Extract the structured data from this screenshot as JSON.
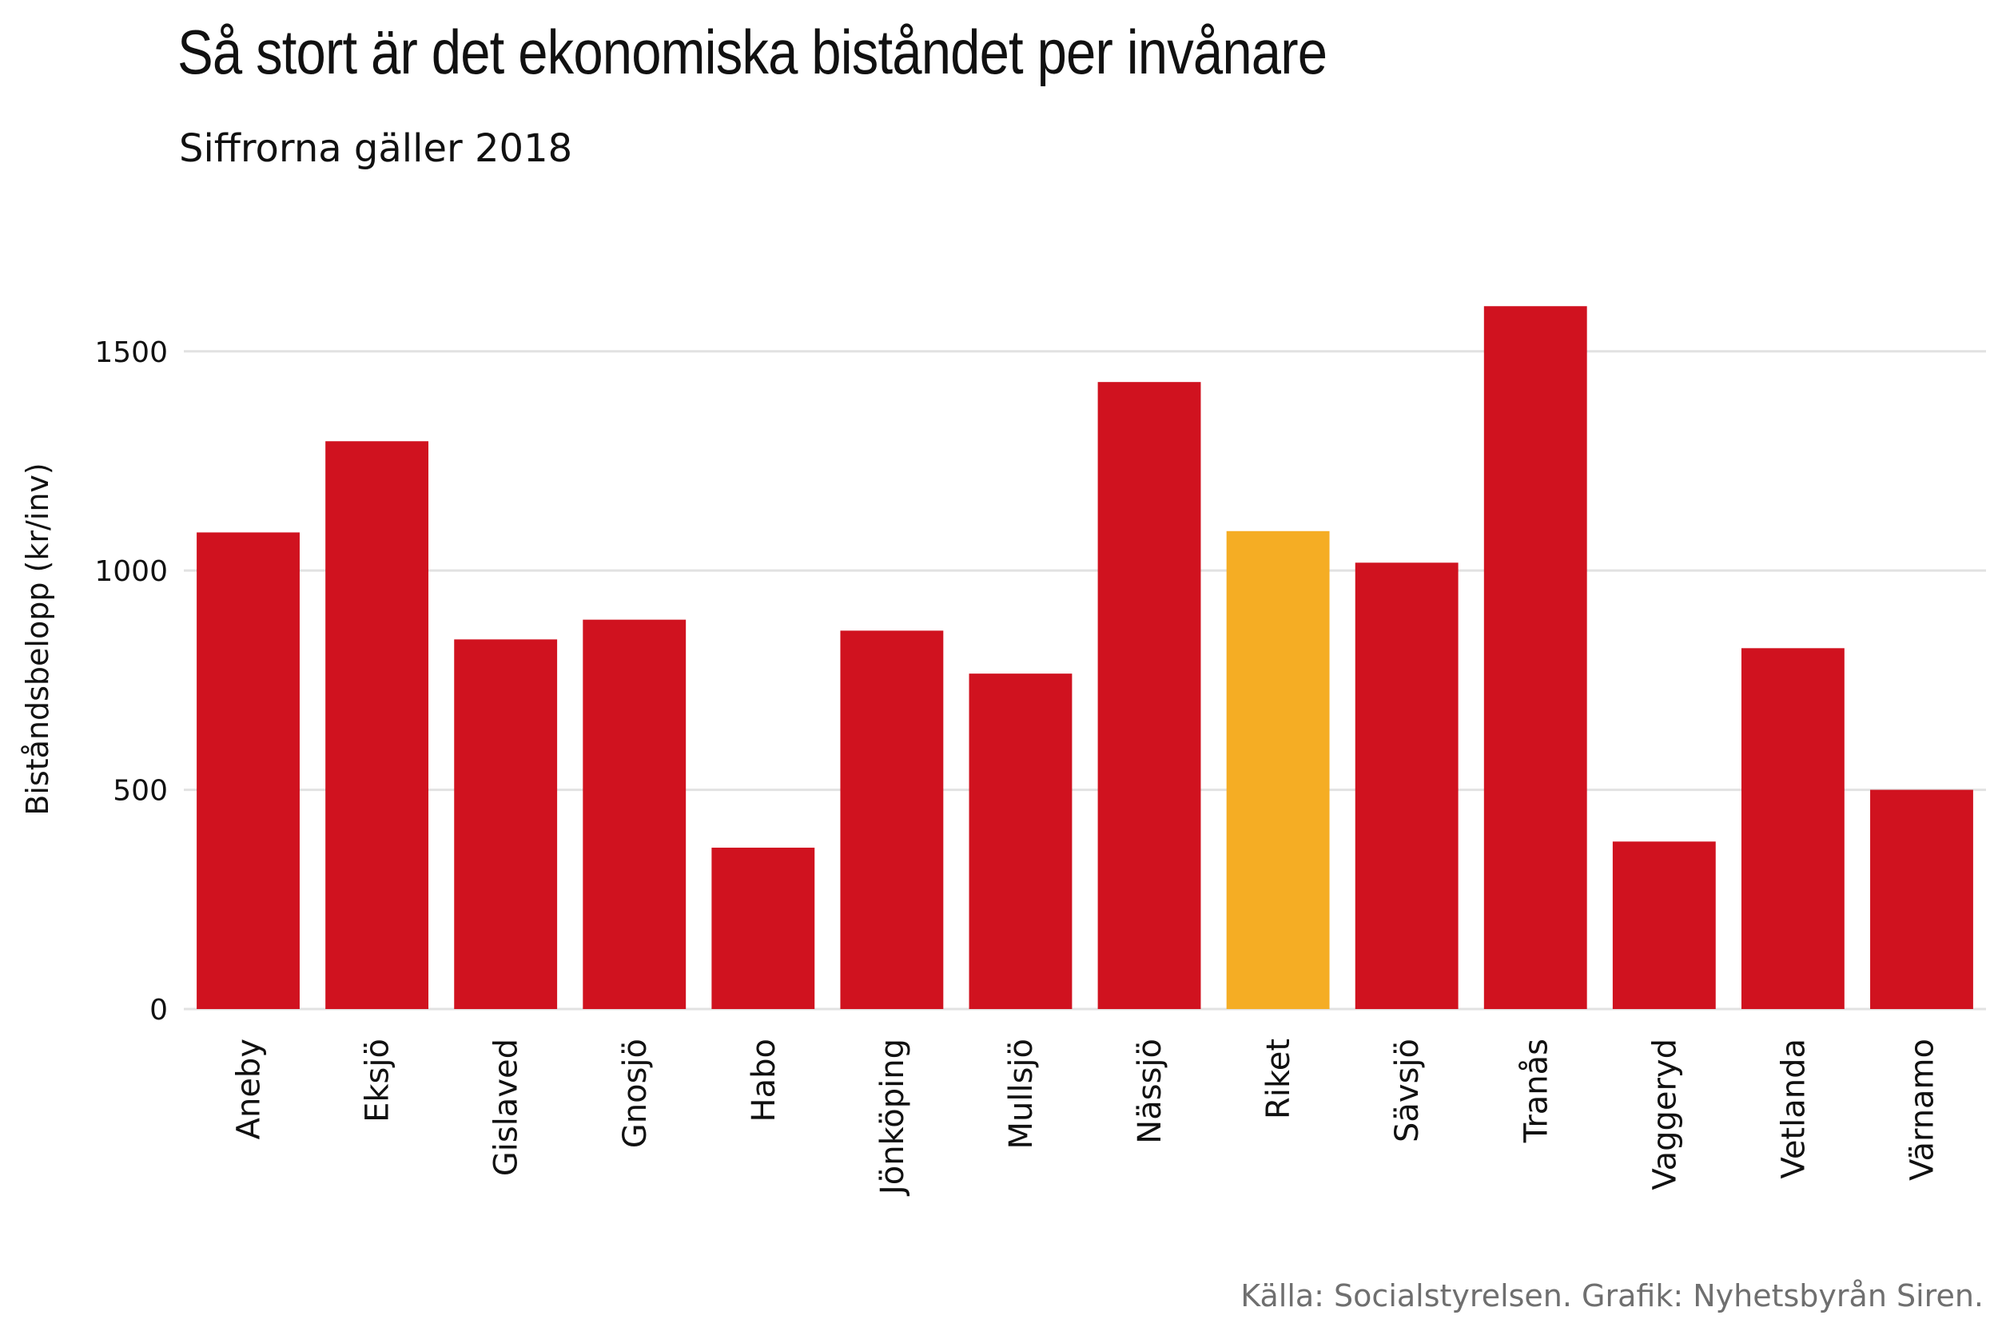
{
  "chart_data": {
    "type": "bar",
    "title": "Så stort är det ekonomiska biståndet per invånare",
    "subtitle": "Siffrorna gäller 2018",
    "ylabel": "Biståndsbelopp (kr/inv)",
    "xlabel": "",
    "caption": "Källa: Socialstyrelsen. Grafik: Nyhetsbyrån Siren.",
    "categories": [
      "Aneby",
      "Eksjö",
      "Gislaved",
      "Gnosjö",
      "Habo",
      "Jönköping",
      "Mullsjö",
      "Nässjö",
      "Riket",
      "Sävsjö",
      "Tranås",
      "Vaggeryd",
      "Vetlanda",
      "Värnamo"
    ],
    "values": [
      1087,
      1295,
      843,
      888,
      368,
      863,
      765,
      1430,
      1090,
      1018,
      1603,
      382,
      823,
      500
    ],
    "highlight": [
      "Riket"
    ],
    "ylim": [
      0,
      1700
    ],
    "yticks": [
      0,
      500,
      1000,
      1500
    ],
    "grid": true,
    "legend": "none"
  },
  "colors": {
    "bar": "#d0121f",
    "highlight": "#f5ad24",
    "grid": "#e2e2e2",
    "caption": "#6f6f6f"
  }
}
